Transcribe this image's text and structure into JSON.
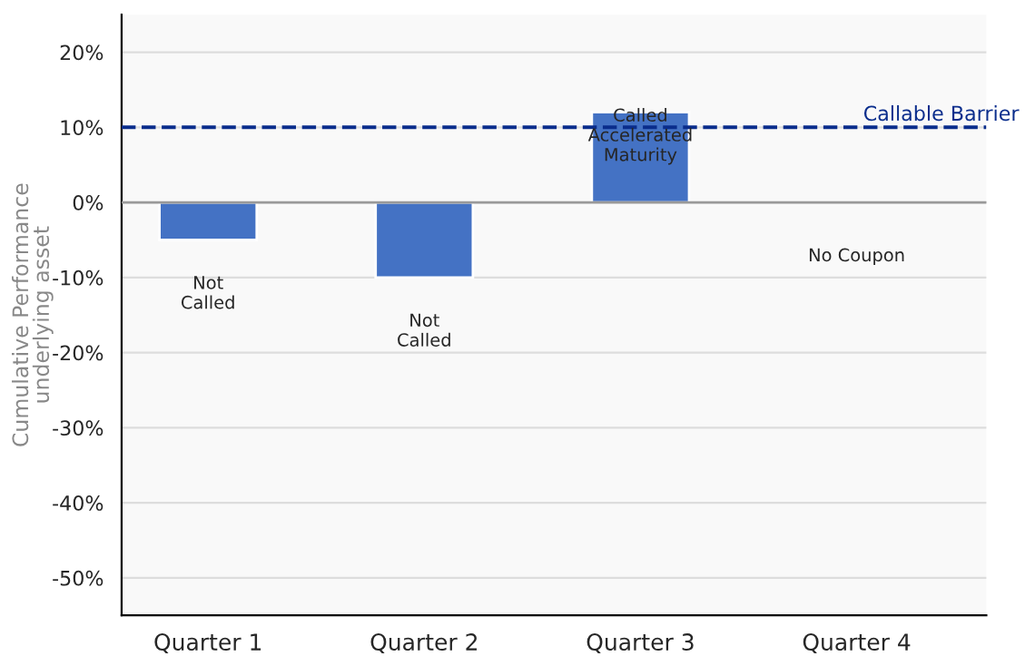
{
  "chart_data": {
    "type": "bar",
    "ylabel": "Cumulative Performance\nunderlying asset",
    "categories": [
      "Quarter 1",
      "Quarter 2",
      "Quarter 3",
      "Quarter 4"
    ],
    "values": [
      -5,
      -10,
      12,
      null
    ],
    "color": "#4472c4",
    "ylim": [
      -55,
      25
    ],
    "yticks": [
      {
        "value": -50,
        "label": "-50%"
      },
      {
        "value": -40,
        "label": "-40%"
      },
      {
        "value": -30,
        "label": "-30%"
      },
      {
        "value": -20,
        "label": "-20%"
      },
      {
        "value": -10,
        "label": "-10%"
      },
      {
        "value": 0,
        "label": "0%"
      },
      {
        "value": 10,
        "label": "10%"
      },
      {
        "value": 20,
        "label": "20%"
      }
    ],
    "grid": "y",
    "ref_lines": [
      {
        "axis": "y",
        "value": 10,
        "label": "Callable Barrier",
        "color": "#0a2d8c",
        "line_style": "dashed"
      },
      {
        "axis": "y",
        "value": 0,
        "label": null,
        "color": "#999999",
        "line_style": "solid"
      }
    ],
    "annotations": [
      "Not\nCalled",
      "Not\nCalled",
      "Called\nAccelerated\nMaturity",
      "No Coupon"
    ]
  }
}
